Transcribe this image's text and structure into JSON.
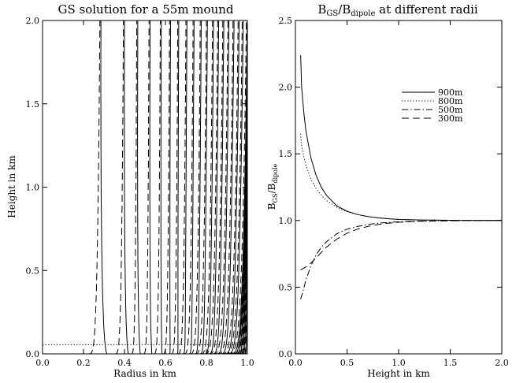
{
  "chart_data": [
    {
      "type": "line",
      "title": "GS solution for a 55m mound",
      "xlabel": "Radius in km",
      "ylabel": "Height in km",
      "xlim": [
        0.0,
        1.0
      ],
      "ylim": [
        0.0,
        2.0
      ],
      "x_ticks": [
        "0.0",
        "0.2",
        "0.4",
        "0.6",
        "0.8",
        "1.0"
      ],
      "y_ticks": [
        "0.0",
        "0.5",
        "1.0",
        "1.5",
        "2.0"
      ],
      "series": [
        {
          "style": "solid",
          "footpoints_x": [
            0.27,
            0.38,
            0.44,
            0.5,
            0.55,
            0.59,
            0.63,
            0.66,
            0.69,
            0.72,
            0.745,
            0.77,
            0.79,
            0.81,
            0.83,
            0.85,
            0.87,
            0.885,
            0.9,
            0.915,
            0.93,
            0.945,
            0.96,
            0.975,
            0.99
          ],
          "top_x": [
            0.285,
            0.4,
            0.465,
            0.525,
            0.58,
            0.625,
            0.665,
            0.705,
            0.74,
            0.775,
            0.805,
            0.835,
            0.86,
            0.885,
            0.91,
            0.935,
            0.96,
            0.98,
            1.0,
            1.0,
            1.0,
            1.0,
            1.0,
            1.0,
            1.0
          ]
        },
        {
          "style": "dashed",
          "footpoints_x": [
            0.22,
            0.35,
            0.43,
            0.49,
            0.54,
            0.585,
            0.625,
            0.655,
            0.685,
            0.715,
            0.74,
            0.765,
            0.785,
            0.805,
            0.825,
            0.845,
            0.865,
            0.88,
            0.895,
            0.91,
            0.925,
            0.94,
            0.955,
            0.97,
            0.985
          ],
          "top_x": [
            0.28,
            0.395,
            0.46,
            0.52,
            0.575,
            0.62,
            0.66,
            0.7,
            0.735,
            0.77,
            0.8,
            0.83,
            0.855,
            0.88,
            0.905,
            0.93,
            0.955,
            0.975,
            0.995,
            1.0,
            1.0,
            1.0,
            1.0,
            1.0,
            1.0
          ]
        },
        {
          "style": "dotted",
          "x": [
            0.0,
            1.0
          ],
          "y": [
            0.055,
            0.055
          ]
        }
      ]
    },
    {
      "type": "line",
      "title_parts": [
        "B",
        "GS",
        "/B",
        "dipole",
        " at different radii"
      ],
      "xlabel": "Height in km",
      "ylabel_parts": [
        "B",
        "GS",
        "/B",
        "dipole"
      ],
      "xlim": [
        0.0,
        2.0
      ],
      "ylim": [
        0.0,
        2.5
      ],
      "x_ticks": [
        "0.0",
        "0.5",
        "1.0",
        "1.5",
        "2.0"
      ],
      "y_ticks": [
        "0.0",
        "0.5",
        "1.0",
        "1.5",
        "2.0",
        "2.5"
      ],
      "legend_position": "top-right",
      "series": [
        {
          "name": "900m",
          "style": "solid",
          "x": [
            0.05,
            0.06,
            0.08,
            0.1,
            0.15,
            0.2,
            0.25,
            0.3,
            0.4,
            0.5,
            0.6,
            0.7,
            0.8,
            0.9,
            1.0,
            1.2,
            1.5,
            1.8,
            2.0
          ],
          "y": [
            2.24,
            2.0,
            1.82,
            1.68,
            1.47,
            1.34,
            1.25,
            1.19,
            1.11,
            1.07,
            1.045,
            1.03,
            1.02,
            1.013,
            1.008,
            1.004,
            1.002,
            1.0,
            1.0
          ]
        },
        {
          "name": "800m",
          "style": "dotted",
          "x": [
            0.05,
            0.06,
            0.08,
            0.1,
            0.15,
            0.2,
            0.25,
            0.3,
            0.4,
            0.5,
            0.6,
            0.7,
            0.8,
            0.9,
            1.0,
            1.2,
            1.5,
            1.8,
            2.0
          ],
          "y": [
            1.65,
            1.56,
            1.48,
            1.42,
            1.31,
            1.24,
            1.19,
            1.15,
            1.1,
            1.065,
            1.045,
            1.03,
            1.02,
            1.013,
            1.008,
            1.004,
            1.002,
            1.0,
            1.0
          ]
        },
        {
          "name": "500m",
          "style": "dashdot",
          "x": [
            0.05,
            0.07,
            0.1,
            0.15,
            0.2,
            0.25,
            0.3,
            0.4,
            0.5,
            0.6,
            0.7,
            0.8,
            0.9,
            1.0,
            1.2,
            1.5,
            1.8,
            2.0
          ],
          "y": [
            0.41,
            0.46,
            0.55,
            0.66,
            0.74,
            0.8,
            0.84,
            0.9,
            0.935,
            0.955,
            0.97,
            0.98,
            0.986,
            0.99,
            0.995,
            0.998,
            1.0,
            1.0
          ]
        },
        {
          "name": "300m",
          "style": "dashed",
          "x": [
            0.05,
            0.1,
            0.15,
            0.2,
            0.25,
            0.3,
            0.4,
            0.5,
            0.6,
            0.7,
            0.8,
            0.9,
            1.0,
            1.2,
            1.5,
            1.8,
            2.0
          ],
          "y": [
            0.63,
            0.65,
            0.68,
            0.72,
            0.76,
            0.8,
            0.86,
            0.905,
            0.935,
            0.955,
            0.97,
            0.98,
            0.987,
            0.994,
            0.998,
            1.0,
            1.0
          ]
        }
      ]
    }
  ]
}
